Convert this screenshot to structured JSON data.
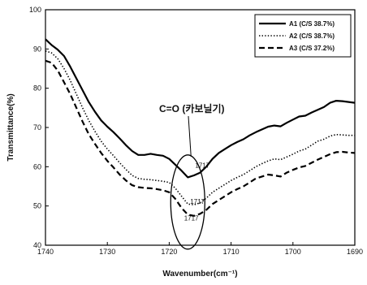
{
  "chart_data": {
    "type": "line",
    "xlabel": "Wavenumber(cm⁻¹)",
    "ylabel": "Transmittance(%)",
    "xlim": [
      1740,
      1690
    ],
    "ylim": [
      40,
      100
    ],
    "x_reversed": true,
    "grid": false,
    "legend_position": "top-right",
    "x_ticks": [
      1740,
      1730,
      1720,
      1710,
      1700,
      1690
    ],
    "y_ticks": [
      40,
      50,
      60,
      70,
      80,
      90,
      100
    ],
    "series": [
      {
        "name": "A1 (C/S 38.7%)",
        "style": "solid",
        "color": "#000000",
        "x": [
          1740,
          1739,
          1738,
          1737,
          1736,
          1735,
          1734,
          1733,
          1732,
          1731,
          1730,
          1729,
          1728,
          1727,
          1726,
          1725,
          1724,
          1723,
          1722,
          1721,
          1720,
          1719,
          1718,
          1717,
          1716,
          1715,
          1714,
          1713,
          1712,
          1711,
          1710,
          1709,
          1708,
          1707,
          1706,
          1705,
          1704,
          1703,
          1702,
          1701,
          1700,
          1699,
          1698,
          1697,
          1696,
          1695,
          1694,
          1693,
          1692,
          1691,
          1690
        ],
        "y": [
          92.5,
          91.0,
          89.8,
          88.2,
          85.5,
          82.5,
          79.5,
          76.5,
          74.0,
          71.8,
          70.2,
          68.8,
          67.2,
          65.5,
          64.0,
          63.0,
          63.0,
          63.3,
          63.0,
          62.8,
          62.0,
          60.5,
          59.0,
          57.3,
          57.8,
          58.5,
          60.0,
          62.0,
          63.5,
          64.5,
          65.5,
          66.3,
          67.0,
          68.0,
          68.8,
          69.5,
          70.2,
          70.5,
          70.3,
          71.2,
          72.0,
          72.8,
          73.0,
          73.8,
          74.5,
          75.2,
          76.3,
          76.8,
          76.7,
          76.5,
          76.3
        ]
      },
      {
        "name": "A2 (C/S 38.7%)",
        "style": "dotted",
        "color": "#000000",
        "x": [
          1740,
          1739,
          1738,
          1737,
          1736,
          1735,
          1734,
          1733,
          1732,
          1731,
          1730,
          1729,
          1728,
          1727,
          1726,
          1725,
          1724,
          1723,
          1722,
          1721,
          1720,
          1719,
          1718,
          1717,
          1716,
          1715,
          1714,
          1713,
          1712,
          1711,
          1710,
          1709,
          1708,
          1707,
          1706,
          1705,
          1704,
          1703,
          1702,
          1701,
          1700,
          1699,
          1698,
          1697,
          1696,
          1695,
          1694,
          1693,
          1692,
          1691,
          1690
        ],
        "y": [
          89.5,
          89.0,
          87.5,
          85.0,
          82.0,
          78.5,
          75.0,
          71.8,
          69.0,
          66.5,
          64.5,
          62.8,
          61.0,
          59.3,
          57.8,
          57.0,
          56.8,
          56.7,
          56.5,
          56.3,
          56.0,
          54.5,
          52.5,
          50.5,
          50.3,
          50.8,
          52.0,
          53.5,
          54.5,
          55.5,
          56.5,
          57.3,
          58.0,
          59.0,
          60.0,
          60.8,
          61.5,
          62.0,
          61.8,
          62.5,
          63.2,
          64.0,
          64.5,
          65.5,
          66.5,
          67.0,
          67.8,
          68.2,
          68.1,
          68.0,
          68.0
        ]
      },
      {
        "name": "A3 (C/S 37.2%)",
        "style": "dashed",
        "color": "#000000",
        "x": [
          1740,
          1739,
          1738,
          1737,
          1736,
          1735,
          1734,
          1733,
          1732,
          1731,
          1730,
          1729,
          1728,
          1727,
          1726,
          1725,
          1724,
          1723,
          1722,
          1721,
          1720,
          1719,
          1718,
          1717,
          1716,
          1715,
          1714,
          1713,
          1712,
          1711,
          1710,
          1709,
          1708,
          1707,
          1706,
          1705,
          1704,
          1703,
          1702,
          1701,
          1700,
          1699,
          1698,
          1697,
          1696,
          1695,
          1694,
          1693,
          1692,
          1691,
          1690
        ],
        "y": [
          87.0,
          86.5,
          84.5,
          81.5,
          78.5,
          75.0,
          71.5,
          68.3,
          65.8,
          63.5,
          61.5,
          59.8,
          58.0,
          56.5,
          55.3,
          54.8,
          54.6,
          54.5,
          54.3,
          54.0,
          53.5,
          51.8,
          49.5,
          47.8,
          47.5,
          48.0,
          49.0,
          50.5,
          51.5,
          52.5,
          53.5,
          54.3,
          55.0,
          56.0,
          57.0,
          57.5,
          58.0,
          57.8,
          57.5,
          58.5,
          59.2,
          59.8,
          60.2,
          61.0,
          61.8,
          62.5,
          63.2,
          63.7,
          63.8,
          63.6,
          63.5
        ]
      }
    ],
    "peak_labels": [
      {
        "text": "1717",
        "x": 1715.8,
        "y": 59.8
      },
      {
        "text": "1717",
        "x": 1716.6,
        "y": 50.6
      },
      {
        "text": "1717",
        "x": 1717.6,
        "y": 46.3
      }
    ],
    "annotation": {
      "text": "C=O (카보닐기)",
      "x": 1717.2,
      "y": 52.5
    }
  }
}
